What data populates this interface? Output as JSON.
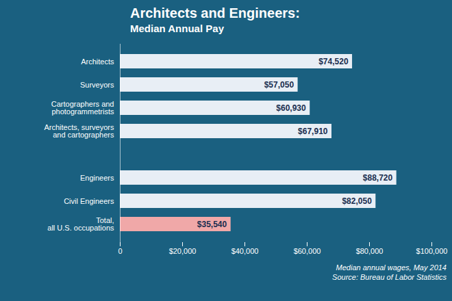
{
  "chart_data": {
    "type": "bar",
    "orientation": "horizontal",
    "title": "Architects and Engineers:",
    "subtitle": "Median Annual Pay",
    "annotations": [
      "Median annual wages, May 2014",
      "Source: Bureau of Labor Statistics"
    ],
    "categories": [
      "Total,\nall U.S. occupations",
      "Civil Engineers",
      "Engineers",
      null,
      "Architects, surveyors\nand cartographers",
      "Cartographers and\nphotogrammetrists",
      "Surveyors",
      "Architects"
    ],
    "values": [
      35540,
      82050,
      88720,
      null,
      67910,
      60930,
      57050,
      74520
    ],
    "value_labels": [
      "$35,540",
      "$82,050",
      "$88,720",
      null,
      "$67,910",
      "$60,930",
      "$57,050",
      "$74,520"
    ],
    "data_labels": true,
    "colors": [
      "#f0a8a8",
      "#e8eef5",
      "#e8eef5",
      null,
      "#e8eef5",
      "#e8eef5",
      "#e8eef5",
      "#e8eef5"
    ],
    "xlim": [
      0,
      100000
    ],
    "xticks": [
      0,
      {
        "value": 20000,
        "label": "$20,000"
      },
      {
        "value": 40000,
        "label": "$40,000"
      },
      {
        "value": 60000,
        "label": "$60,000"
      },
      {
        "value": 80000,
        "label": "$80,000"
      },
      {
        "value": 100000,
        "label": "$100,000"
      }
    ],
    "grid": false
  }
}
